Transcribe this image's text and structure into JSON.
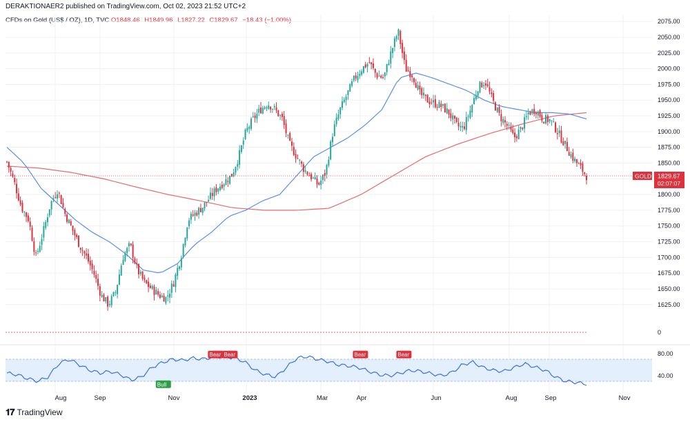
{
  "header": {
    "published": "DERAKTIONAER2 published on TradingView.com, Oct 02, 2023 21:52 UTC+2"
  },
  "legend": {
    "symbol": "CFDs on Gold (US$ / OZ), 1D, TVC",
    "open": "O1848.46",
    "high": "H1849.96",
    "low": "L1827.22",
    "close": "C1829.67",
    "change": "−18.43 (−1.00%)"
  },
  "price_badge": {
    "symbol": "GOLD",
    "price": "1829.67",
    "countdown": "02:07:07"
  },
  "footer": {
    "brand": "TradingView"
  },
  "colors": {
    "up": "#22a79a",
    "down": "#e0303c",
    "ma50": "#5b8ee6",
    "ma200": "#e86a6a",
    "rsi": "#3a6fd8",
    "grid": "#eef0f3"
  },
  "chart_data": {
    "type": "candlestick",
    "price_axis": {
      "ticks": [
        2075,
        2050,
        2025,
        2000,
        1975,
        1950,
        1925,
        1900,
        1875,
        1850,
        1825,
        1800,
        1775,
        1750,
        1725,
        1700,
        1675,
        1650,
        1625
      ],
      "range": [
        1605,
        2085
      ]
    },
    "x_labels": [
      "Aug",
      "Sep",
      "Nov",
      "2023",
      "Mar",
      "Apr",
      "Jun",
      "Aug",
      "Sep",
      "Nov"
    ],
    "candles_anchor": [
      1852,
      1820,
      1780,
      1760,
      1700,
      1740,
      1785,
      1808,
      1770,
      1745,
      1720,
      1700,
      1675,
      1640,
      1625,
      1645,
      1700,
      1720,
      1680,
      1660,
      1650,
      1640,
      1635,
      1660,
      1700,
      1760,
      1770,
      1780,
      1795,
      1810,
      1820,
      1830,
      1860,
      1900,
      1920,
      1935,
      1945,
      1935,
      1920,
      1880,
      1860,
      1840,
      1828,
      1815,
      1835,
      1900,
      1935,
      1960,
      1985,
      2000,
      2010,
      1990,
      1985,
      2025,
      2060,
      2000,
      1990,
      1960,
      1950,
      1945,
      1940,
      1930,
      1910,
      1905,
      1935,
      1970,
      1980,
      1950,
      1925,
      1910,
      1890,
      1905,
      1930,
      1935,
      1920,
      1918,
      1900,
      1880,
      1860,
      1845,
      1829.67
    ],
    "ma50_anchor": [
      1875,
      1850,
      1810,
      1785,
      1760,
      1740,
      1725,
      1705,
      1680,
      1675,
      1690,
      1720,
      1740,
      1765,
      1775,
      1790,
      1800,
      1830,
      1860,
      1875,
      1890,
      1910,
      1935,
      1985,
      1993,
      1985,
      1975,
      1965,
      1950,
      1940,
      1935,
      1930,
      1930,
      1928,
      1920
    ],
    "ma200_anchor": [
      1845,
      1842,
      1835,
      1825,
      1812,
      1800,
      1790,
      1779,
      1775,
      1775,
      1778,
      1800,
      1830,
      1860,
      1880,
      1897,
      1912,
      1925,
      1930
    ],
    "rsi": {
      "ticks": [
        80,
        40
      ],
      "band": [
        70,
        30
      ],
      "anchor": [
        45,
        42,
        35,
        30,
        38,
        62,
        70,
        60,
        50,
        45,
        48,
        42,
        32,
        38,
        55,
        64,
        70,
        68,
        72,
        70,
        75,
        74,
        73,
        65,
        50,
        42,
        38,
        55,
        72,
        75,
        70,
        66,
        60,
        58,
        55,
        48,
        42,
        40,
        45,
        50,
        48,
        44,
        40,
        46,
        60,
        65,
        55,
        50,
        48,
        55,
        62,
        56,
        50,
        38,
        30,
        28,
        25
      ],
      "signals": [
        {
          "label": "Bull",
          "kind": "bull",
          "pos": 0.27
        },
        {
          "label": "Bear",
          "kind": "bear",
          "pos": 0.36
        },
        {
          "label": "Bear",
          "kind": "bear",
          "pos": 0.385
        },
        {
          "label": "Bear",
          "kind": "bear",
          "pos": 0.61
        },
        {
          "label": "Bear",
          "kind": "bear",
          "pos": 0.685
        }
      ]
    },
    "volume_panel": {
      "ticks": [
        0
      ]
    }
  }
}
